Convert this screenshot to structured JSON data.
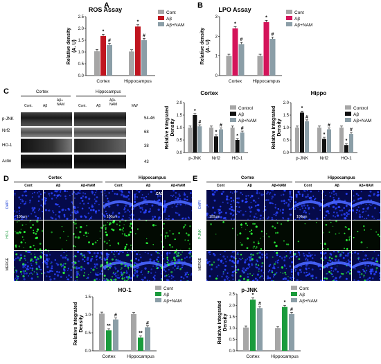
{
  "panels": {
    "A": "A",
    "B": "B",
    "C": "C",
    "D": "D",
    "E": "E"
  },
  "colors": {
    "cont": "#a6a6a6",
    "abeta_red": "#c0151f",
    "abeta_pink": "#d4145a",
    "abeta_black": "#111111",
    "abeta_green": "#1a9b3c",
    "nam": "#8b9ea7"
  },
  "chart_data": [
    {
      "id": "A",
      "type": "bar",
      "title": "ROS Assay",
      "ylabel": "Relative density (A. U)",
      "ylim": [
        0,
        2.5
      ],
      "yticks": [
        "0.0",
        "0.5",
        "1.0",
        "1.5",
        "2.0",
        "2.5"
      ],
      "categories": [
        "Cortex",
        "Hippocampus"
      ],
      "series": [
        {
          "name": "Cont",
          "values": [
            1.03,
            1.02
          ]
        },
        {
          "name": "Aβ",
          "values": [
            1.68,
            2.08
          ]
        },
        {
          "name": "Aβ+NAM",
          "values": [
            1.3,
            1.5
          ]
        }
      ],
      "marks": [
        [
          "",
          "*",
          "#"
        ],
        [
          "",
          "*",
          "#"
        ]
      ]
    },
    {
      "id": "B",
      "type": "bar",
      "title": "LPO Assay",
      "ylabel": "Relative density (A. U)",
      "ylim": [
        0,
        3
      ],
      "yticks": [
        "0",
        "1",
        "2",
        "3"
      ],
      "categories": [
        "Cortex",
        "Hippocampus"
      ],
      "series": [
        {
          "name": "Cont",
          "values": [
            1.0,
            1.0
          ]
        },
        {
          "name": "Aβ",
          "values": [
            2.4,
            2.72
          ]
        },
        {
          "name": "Aβ+NAM",
          "values": [
            1.6,
            1.87
          ]
        }
      ],
      "marks": [
        [
          "",
          "*",
          "#"
        ],
        [
          "",
          "*",
          "#"
        ]
      ]
    },
    {
      "id": "C1",
      "type": "bar",
      "title": "Cortex",
      "ylabel": "Relative Integrated Density",
      "ylim": [
        0,
        2
      ],
      "yticks": [
        "0.0",
        "0.5",
        "1.0",
        "1.5",
        "2.0"
      ],
      "categories": [
        "p-JNK",
        "Nrf2",
        "HO-1"
      ],
      "series": [
        {
          "name": "Control",
          "values": [
            1.0,
            1.0,
            1.0
          ]
        },
        {
          "name": "Aβ",
          "values": [
            1.5,
            0.65,
            0.5
          ]
        },
        {
          "name": "Aβ+NAM",
          "values": [
            1.05,
            0.93,
            0.8
          ]
        }
      ],
      "marks": [
        [
          "",
          "*",
          "#"
        ],
        [
          "",
          "*",
          "#"
        ],
        [
          "",
          "*",
          "#"
        ]
      ]
    },
    {
      "id": "C2",
      "type": "bar",
      "title": "Hippo",
      "ylabel": "Relative Integrated Density",
      "ylim": [
        0,
        2
      ],
      "yticks": [
        "0.0",
        "0.5",
        "1.0",
        "1.5",
        "2.0"
      ],
      "categories": [
        "p-JNK",
        "Nrf2",
        "HO-1"
      ],
      "series": [
        {
          "name": "Control",
          "values": [
            1.0,
            1.0,
            1.0
          ]
        },
        {
          "name": "Aβ",
          "values": [
            1.6,
            0.55,
            0.3
          ]
        },
        {
          "name": "Aβ+NAM",
          "values": [
            1.25,
            0.93,
            0.75
          ]
        }
      ],
      "marks": [
        [
          "",
          "*",
          "#"
        ],
        [
          "",
          "*",
          "#"
        ],
        [
          "",
          "*",
          "#"
        ]
      ]
    },
    {
      "id": "D",
      "type": "bar",
      "title": "HO-1",
      "ylabel": "Relative Integrated Density",
      "ylim": [
        0,
        1.5
      ],
      "yticks": [
        "0.0",
        "0.5",
        "1.0",
        "1.5"
      ],
      "categories": [
        "Cortex",
        "Hippocampus"
      ],
      "series": [
        {
          "name": "Cont",
          "values": [
            1.03,
            1.02
          ]
        },
        {
          "name": "Aβ",
          "values": [
            0.57,
            0.37
          ]
        },
        {
          "name": "Aβ+NAM",
          "values": [
            0.87,
            0.65
          ]
        }
      ],
      "marks": [
        [
          "",
          "**",
          "#"
        ],
        [
          "",
          "**",
          "#"
        ]
      ]
    },
    {
      "id": "E",
      "type": "bar",
      "title": "p-JNK",
      "ylabel": "Relative Integrated Density",
      "ylim": [
        0,
        2.5
      ],
      "yticks": [
        "0.0",
        "0.5",
        "1.0",
        "1.5",
        "2.0",
        "2.5"
      ],
      "categories": [
        "Cortex",
        "Hippocampus"
      ],
      "series": [
        {
          "name": "Cont",
          "values": [
            1.02,
            1.0
          ]
        },
        {
          "name": "Aβ",
          "values": [
            2.25,
            1.93
          ]
        },
        {
          "name": "Aβ+NAM",
          "values": [
            1.88,
            1.62
          ]
        }
      ],
      "marks": [
        [
          "",
          "*",
          "#"
        ],
        [
          "",
          "*",
          "#"
        ]
      ]
    }
  ],
  "blot": {
    "headers": [
      "Cortex",
      "Hippocampus"
    ],
    "lanes": [
      "Cont.",
      "Aβ",
      "Aβ+ NAM",
      "Cont.",
      "Aβ",
      "Aβ+ NAM"
    ],
    "mw_label": "MW",
    "rows": [
      {
        "name": "p-JNK",
        "mw": "54-46"
      },
      {
        "name": "Nrf2",
        "mw": "68"
      },
      {
        "name": "HO-1",
        "mw": "38"
      },
      {
        "name": "Actin",
        "mw": "43"
      }
    ]
  },
  "micro_D": {
    "headers": [
      "Cortex",
      "Hippocampus"
    ],
    "columns": [
      "Cont",
      "Aβ",
      "Aβ+NAM",
      "Cont",
      "Aβ",
      "Aβ+NAM"
    ],
    "rows": [
      "DAPI",
      "HO-1",
      "MERGE"
    ],
    "scale": "100μm",
    "scale2": "100μm",
    "region": "CA1"
  },
  "micro_E": {
    "headers": [
      "Cortex",
      "Hippocampus"
    ],
    "columns": [
      "Cont",
      "Aβ",
      "Aβ+NAM",
      "Cont",
      "Aβ",
      "Aβ+NAM"
    ],
    "rows": [
      "DAPI",
      "P-JNK",
      "MERGE"
    ],
    "scale": "100μm",
    "scale2": "100μm"
  }
}
